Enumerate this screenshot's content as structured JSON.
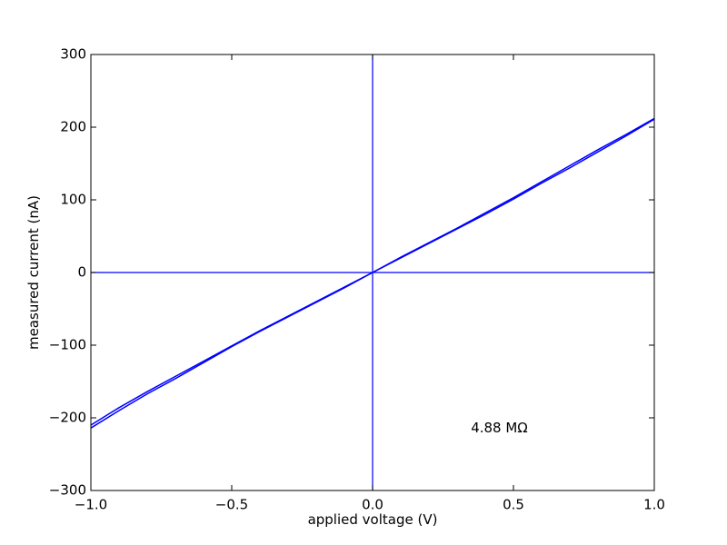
{
  "chart_data": {
    "type": "line",
    "title": "",
    "xlabel": "applied voltage (V)",
    "ylabel": "measured current (nA)",
    "xlim": [
      -1.0,
      1.0
    ],
    "ylim": [
      -300,
      300
    ],
    "x_ticks": [
      -1.0,
      -0.5,
      0.0,
      0.5,
      1.0
    ],
    "x_tick_labels": [
      "−1.0",
      "−0.5",
      "0.0",
      "0.5",
      "1.0"
    ],
    "y_ticks": [
      -300,
      -200,
      -100,
      0,
      100,
      200,
      300
    ],
    "y_tick_labels": [
      "−300",
      "−200",
      "−100",
      "0",
      "100",
      "200",
      "300"
    ],
    "grid": false,
    "reference_lines": {
      "x": 0,
      "y": 0
    },
    "annotation": {
      "text": "4.88 MΩ",
      "x": 0.45,
      "y": -220
    },
    "series": [
      {
        "x": [
          -1.0,
          -0.9,
          -0.8,
          -0.7,
          -0.6,
          -0.5,
          -0.4,
          -0.3,
          -0.2,
          -0.1,
          0.0,
          0.1,
          0.2,
          0.3,
          0.4,
          0.5,
          0.6,
          0.7,
          0.8,
          0.9,
          1.0
        ],
        "y": [
          -210,
          -186,
          -164,
          -143,
          -122,
          -101,
          -80,
          -60,
          -40,
          -20,
          0,
          20,
          40,
          60,
          80,
          101,
          123,
          144,
          166,
          188,
          211
        ]
      },
      {
        "x": [
          -1.0,
          -0.9,
          -0.8,
          -0.7,
          -0.6,
          -0.5,
          -0.4,
          -0.3,
          -0.2,
          -0.1,
          0.0,
          0.1,
          0.2,
          0.3,
          0.4,
          0.5,
          0.6,
          0.7,
          0.8,
          0.9,
          1.0
        ],
        "y": [
          -214,
          -190,
          -167,
          -146,
          -124,
          -102,
          -81,
          -61,
          -41,
          -21,
          0,
          21,
          41,
          61,
          82,
          103,
          125,
          147,
          169,
          190,
          212
        ]
      }
    ],
    "colors": {
      "series": "#0000ff",
      "reference": "#0000ff",
      "axes": "#000000"
    }
  }
}
